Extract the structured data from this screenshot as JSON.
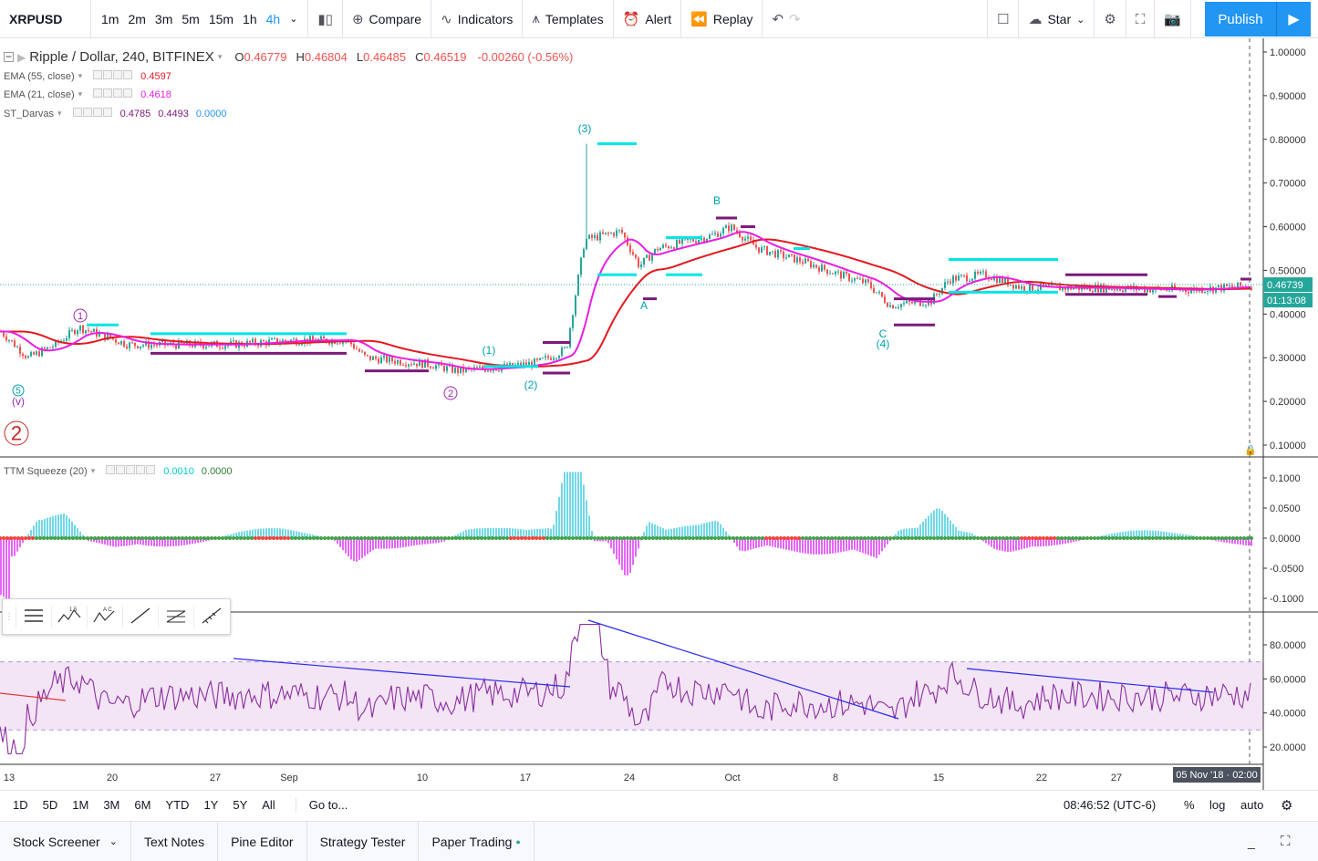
{
  "toolbar": {
    "symbol": "XRPUSD",
    "intervals": [
      "1m",
      "2m",
      "3m",
      "5m",
      "15m",
      "1h",
      "4h"
    ],
    "active_interval": "4h",
    "compare": "Compare",
    "indicators": "Indicators",
    "templates": "Templates",
    "alert": "Alert",
    "replay": "Replay",
    "star": "Star",
    "publish": "Publish"
  },
  "legend": {
    "title": "Ripple / Dollar, 240, BITFINEX",
    "o_label": "O",
    "o": "0.46779",
    "h_label": "H",
    "h": "0.46804",
    "l_label": "L",
    "l": "0.46485",
    "c_label": "C",
    "c": "0.46519",
    "change": "-0.00260 (-0.56%)",
    "ema55": "EMA (55, close)",
    "ema55_val": "0.4597",
    "ema21": "EMA (21, close)",
    "ema21_val": "0.4618",
    "darvas": "ST_Darvas",
    "darvas_v1": "0.4785",
    "darvas_v2": "0.4493",
    "darvas_v3": "0.0000",
    "ttm": "TTM Squeeze (20)",
    "ttm_v1": "0.0010",
    "ttm_v2": "0.0000"
  },
  "price_axis": [
    "1.00000",
    "0.90000",
    "0.80000",
    "0.70000",
    "0.60000",
    "0.50000",
    "0.40000",
    "0.30000",
    "0.20000",
    "0.10000"
  ],
  "last_price": "0.46739",
  "countdown": "01:13:08",
  "ttm_axis": [
    "0.1000",
    "0.0500",
    "0.0000",
    "-0.0500",
    "-0.1000"
  ],
  "rsi_axis": [
    "80.0000",
    "60.0000",
    "40.0000",
    "20.0000"
  ],
  "time_axis": [
    "13",
    "20",
    "27",
    "Sep",
    "10",
    "17",
    "24",
    "Oct",
    "8",
    "15",
    "22",
    "27"
  ],
  "crosshair_date": "05 Nov '18 · 02:00",
  "wave_labels": {
    "w1": "1",
    "w2": "2",
    "w3": "(3)",
    "w1b": "(1)",
    "w2b": "(2)",
    "w4": "(4)",
    "a": "A",
    "b": "B",
    "c": "C",
    "v5": "5",
    "vv": "(v)",
    "big2": "2"
  },
  "bottom": {
    "ranges": [
      "1D",
      "5D",
      "1M",
      "3M",
      "6M",
      "YTD",
      "1Y",
      "5Y",
      "All"
    ],
    "goto": "Go to...",
    "time": "08:46:52 (UTC-6)",
    "pct": "%",
    "log": "log",
    "auto": "auto"
  },
  "panels": [
    "Stock Screener",
    "Text Notes",
    "Pine Editor",
    "Strategy Tester",
    "Paper Trading"
  ],
  "colors": {
    "up": "#26a69a",
    "down": "#ef5350",
    "ema55": "#e5181f",
    "ema21": "#e91ee0",
    "darvas_top": "#00e5e5",
    "darvas_bot": "#7b1a7b",
    "accent": "#2196f3",
    "rsi_line": "#8b2ea0",
    "trend": "#2a2af0"
  }
}
